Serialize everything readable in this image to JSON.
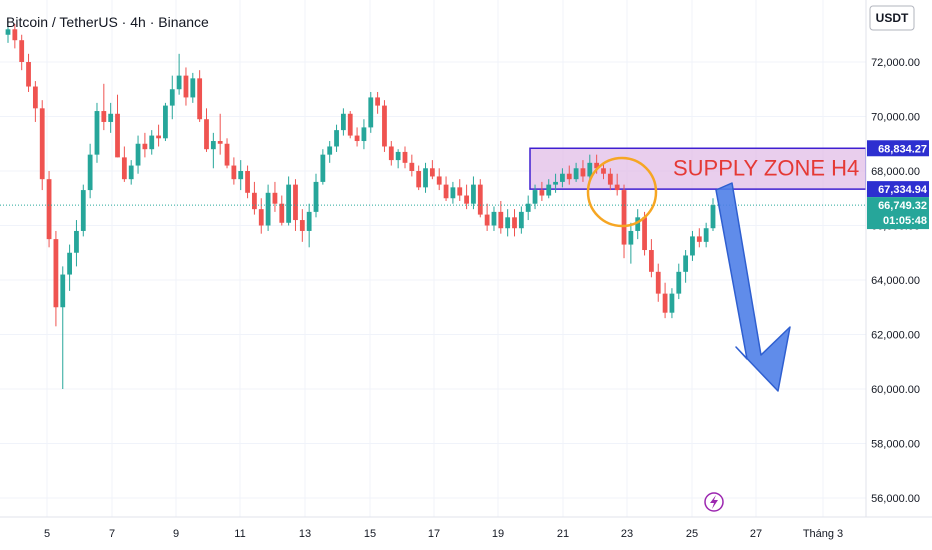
{
  "header": {
    "title": "Bitcoin / TetherUS · 4h · Binance"
  },
  "price_axis": {
    "currency": "USDT",
    "ticks": [
      "72,000.00",
      "70,000.00",
      "68,000.00",
      "66,000.00",
      "64,000.00",
      "62,000.00",
      "60,000.00",
      "58,000.00",
      "56,000.00"
    ]
  },
  "time_axis": {
    "ticks": [
      "5",
      "7",
      "9",
      "11",
      "13",
      "15",
      "17",
      "19",
      "21",
      "23",
      "25",
      "27",
      "Tháng 3"
    ]
  },
  "price_tags": {
    "zone_top": "68,834.27",
    "zone_bottom": "67,334.94",
    "last_price": "66,749.32",
    "countdown": "01:05:48"
  },
  "annotations": {
    "supply_zone_label": "SUPPLY ZONE H4",
    "lightning_icon": "lightning-icon"
  },
  "colors": {
    "up": "#26a69a",
    "down": "#ef5350",
    "zone_fill": "#e1bee7",
    "zone_border": "#3f1fd1",
    "zone_text": "#e53935",
    "circle": "#f6a623",
    "arrow": "#4f7fe8",
    "last_tag": "#26a69a",
    "zone_tag": "#2d2fd0"
  },
  "chart_data": {
    "type": "candlestick",
    "title": "Bitcoin / TetherUS · 4h · Binance",
    "ylim": [
      55500,
      73500
    ],
    "x_tick_labels": [
      "5",
      "7",
      "9",
      "11",
      "13",
      "15",
      "17",
      "19",
      "21",
      "23",
      "25",
      "27",
      "Tháng 3"
    ],
    "supply_zone": [
      67334.94,
      68834.27
    ],
    "last_price": 66749.32,
    "series": [
      {
        "values": [
          [
            73000,
            73500,
            72700,
            73200
          ],
          [
            73200,
            73400,
            72500,
            72800
          ],
          [
            72800,
            73000,
            71700,
            72000
          ],
          [
            72000,
            72300,
            70900,
            71100
          ],
          [
            71100,
            71300,
            69800,
            70300
          ],
          [
            70300,
            70600,
            67300,
            67700
          ],
          [
            67700,
            68000,
            65200,
            65500
          ],
          [
            65500,
            65800,
            62300,
            63000
          ],
          [
            63000,
            64500,
            60000,
            64200
          ],
          [
            64200,
            65300,
            63600,
            65000
          ],
          [
            65000,
            66200,
            64500,
            65800
          ],
          [
            65800,
            67500,
            65600,
            67300
          ],
          [
            67300,
            69000,
            67000,
            68600
          ],
          [
            68600,
            70500,
            68300,
            70200
          ],
          [
            70200,
            71200,
            69500,
            69800
          ],
          [
            69800,
            70500,
            69400,
            70100
          ],
          [
            70100,
            70800,
            68500,
            68500
          ],
          [
            68500,
            68900,
            67600,
            67700
          ],
          [
            67700,
            68400,
            67500,
            68200
          ],
          [
            68200,
            69300,
            67900,
            69000
          ],
          [
            69000,
            69400,
            68500,
            68800
          ],
          [
            68800,
            69500,
            68600,
            69300
          ],
          [
            69300,
            69700,
            68900,
            69200
          ],
          [
            69200,
            70500,
            69100,
            70400
          ],
          [
            70400,
            71500,
            69900,
            71000
          ],
          [
            71000,
            72300,
            70800,
            71500
          ],
          [
            71500,
            71800,
            70400,
            70700
          ],
          [
            70700,
            71600,
            70500,
            71400
          ],
          [
            71400,
            71700,
            69800,
            69900
          ],
          [
            69900,
            70300,
            68700,
            68800
          ],
          [
            68800,
            69400,
            68100,
            69100
          ],
          [
            69100,
            70100,
            68600,
            69000
          ],
          [
            69000,
            69200,
            68100,
            68200
          ],
          [
            68200,
            68500,
            67500,
            67700
          ],
          [
            67700,
            68400,
            67300,
            68000
          ],
          [
            68000,
            68200,
            67000,
            67200
          ],
          [
            67200,
            67600,
            66400,
            66600
          ],
          [
            66600,
            67000,
            65700,
            66000
          ],
          [
            66000,
            67500,
            65800,
            67200
          ],
          [
            67200,
            67600,
            66500,
            66800
          ],
          [
            66800,
            67100,
            66000,
            66100
          ],
          [
            66100,
            67800,
            66000,
            67500
          ],
          [
            67500,
            67700,
            65800,
            66200
          ],
          [
            66200,
            66600,
            65400,
            65800
          ],
          [
            65800,
            66800,
            65200,
            66500
          ],
          [
            66500,
            67900,
            66300,
            67600
          ],
          [
            67600,
            68800,
            67500,
            68600
          ],
          [
            68600,
            69100,
            68300,
            68900
          ],
          [
            68900,
            69700,
            68700,
            69500
          ],
          [
            69500,
            70300,
            69300,
            70100
          ],
          [
            70100,
            70200,
            69200,
            69300
          ],
          [
            69300,
            69600,
            68900,
            69100
          ],
          [
            69100,
            69900,
            68800,
            69600
          ],
          [
            69600,
            70900,
            69400,
            70700
          ],
          [
            70700,
            70900,
            70100,
            70400
          ],
          [
            70400,
            70600,
            68700,
            68900
          ],
          [
            68900,
            69100,
            68200,
            68400
          ],
          [
            68400,
            68800,
            68100,
            68700
          ],
          [
            68700,
            68900,
            68100,
            68300
          ],
          [
            68300,
            68600,
            67800,
            68000
          ],
          [
            68000,
            68200,
            67300,
            67400
          ],
          [
            67400,
            68300,
            67200,
            68100
          ],
          [
            68100,
            68400,
            67700,
            67800
          ],
          [
            67800,
            68100,
            67300,
            67500
          ],
          [
            67500,
            67800,
            66900,
            67000
          ],
          [
            67000,
            67600,
            66800,
            67400
          ],
          [
            67400,
            67700,
            66900,
            67100
          ],
          [
            67100,
            67500,
            66600,
            66800
          ],
          [
            66800,
            67800,
            66600,
            67500
          ],
          [
            67500,
            67700,
            66300,
            66400
          ],
          [
            66400,
            66800,
            65800,
            66000
          ],
          [
            66000,
            66700,
            65800,
            66500
          ],
          [
            66500,
            66900,
            65700,
            65900
          ],
          [
            65900,
            66600,
            65600,
            66300
          ],
          [
            66300,
            66600,
            65600,
            65900
          ],
          [
            65900,
            66700,
            65700,
            66500
          ],
          [
            66500,
            67100,
            66200,
            66800
          ],
          [
            66800,
            67500,
            66600,
            67300
          ],
          [
            67300,
            67600,
            66900,
            67100
          ],
          [
            67100,
            67700,
            67000,
            67500
          ],
          [
            67500,
            67900,
            67200,
            67600
          ],
          [
            67600,
            68100,
            67400,
            67900
          ],
          [
            67900,
            68200,
            67500,
            67700
          ],
          [
            67700,
            68300,
            67600,
            68100
          ],
          [
            68100,
            68400,
            67600,
            67800
          ],
          [
            67800,
            68600,
            67700,
            68300
          ],
          [
            68300,
            68600,
            67900,
            68100
          ],
          [
            68100,
            68300,
            67700,
            67900
          ],
          [
            67900,
            68100,
            67300,
            67500
          ],
          [
            67500,
            67900,
            67100,
            67300
          ],
          [
            67300,
            67500,
            64800,
            65300
          ],
          [
            65300,
            66100,
            64600,
            65800
          ],
          [
            65800,
            66600,
            65500,
            66300
          ],
          [
            66300,
            66500,
            64900,
            65100
          ],
          [
            65100,
            65500,
            64100,
            64300
          ],
          [
            64300,
            64600,
            63200,
            63500
          ],
          [
            63500,
            63900,
            62600,
            62800
          ],
          [
            62800,
            63700,
            62600,
            63500
          ],
          [
            63500,
            64600,
            63300,
            64300
          ],
          [
            64300,
            65100,
            63900,
            64900
          ],
          [
            64900,
            65800,
            64700,
            65600
          ],
          [
            65600,
            65900,
            65200,
            65400
          ],
          [
            65400,
            66100,
            65200,
            65900
          ],
          [
            65900,
            67000,
            65800,
            66750
          ]
        ]
      }
    ]
  }
}
